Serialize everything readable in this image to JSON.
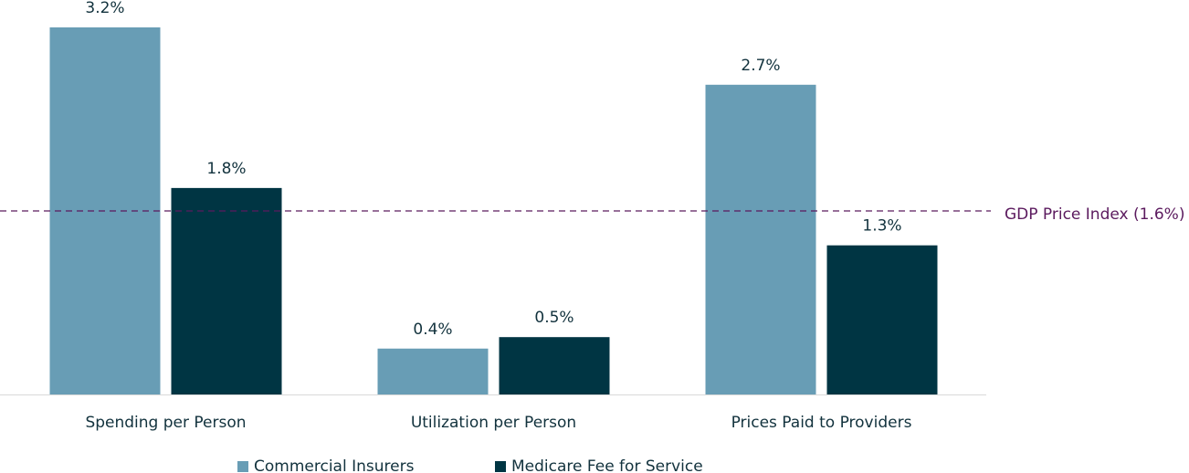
{
  "chart_data": {
    "type": "bar",
    "categories": [
      "Spending per Person",
      "Utilization per Person",
      "Prices Paid to Providers"
    ],
    "series": [
      {
        "name": "Commercial Insurers",
        "color": "#689db5",
        "values": [
          3.2,
          0.4,
          2.7
        ],
        "value_labels": [
          "3.2%",
          "0.4%",
          "2.7%"
        ]
      },
      {
        "name": "Medicare Fee for Service",
        "color": "#003543",
        "values": [
          1.8,
          0.5,
          1.3
        ],
        "value_labels": [
          "1.8%",
          "0.5%",
          "1.3%"
        ]
      }
    ],
    "reference_line": {
      "value": 1.6,
      "label": "GDP Price Index (1.6%)",
      "color": "#5b1a5e"
    }
  }
}
